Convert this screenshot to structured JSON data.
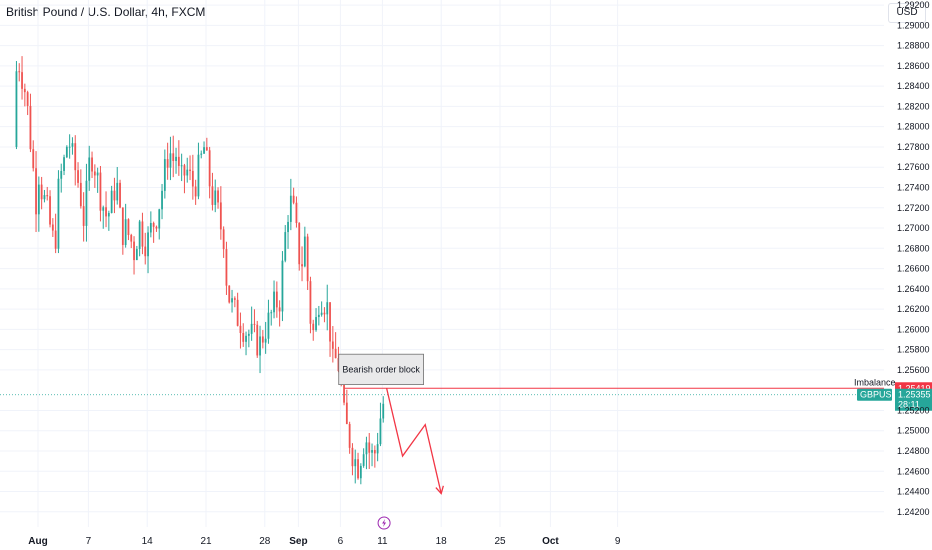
{
  "header": {
    "title": "British Pound / U.S. Dollar, 4h, FXCM",
    "currency": "USD"
  },
  "colors": {
    "up": "#26a69a",
    "down": "#ef5350",
    "arrow": "#f23645",
    "grid": "#f0f3fa",
    "price_line": "#26a69a",
    "imbalance_line": "#f23645",
    "block_fill": "#e9e9ea",
    "block_border": "#707070",
    "event_icon": "#9c27b0"
  },
  "chart_data": {
    "type": "candlestick",
    "symbol": "GBPUSD",
    "timeframe": "4h",
    "ylim": [
      1.2405,
      1.2925
    ],
    "y_ticks": [
      "1.29200",
      "1.29000",
      "1.28800",
      "1.28600",
      "1.28400",
      "1.28200",
      "1.28000",
      "1.27800",
      "1.27600",
      "1.27400",
      "1.27200",
      "1.27000",
      "1.26800",
      "1.26600",
      "1.26400",
      "1.26200",
      "1.26000",
      "1.25800",
      "1.25600",
      "1.25200",
      "1.25000",
      "1.24800",
      "1.24600",
      "1.24400",
      "1.24200"
    ],
    "x_ticks": [
      {
        "label": "Aug",
        "day": 0,
        "bold": true
      },
      {
        "label": "7",
        "day": 6
      },
      {
        "label": "14",
        "day": 13
      },
      {
        "label": "21",
        "day": 20
      },
      {
        "label": "28",
        "day": 27
      },
      {
        "label": "Sep",
        "day": 31,
        "bold": true
      },
      {
        "label": "6",
        "day": 36
      },
      {
        "label": "11",
        "day": 41
      },
      {
        "label": "18",
        "day": 48
      },
      {
        "label": "25",
        "day": 55
      },
      {
        "label": "Oct",
        "day": 61,
        "bold": true
      },
      {
        "label": "9",
        "day": 69
      }
    ],
    "price_path": [
      [
        -2.9,
        1.278
      ],
      [
        -2.5,
        1.287
      ],
      [
        -2.0,
        1.2855
      ],
      [
        -1.4,
        1.283
      ],
      [
        -1.0,
        1.2795
      ],
      [
        -0.6,
        1.276
      ],
      [
        -0.2,
        1.2725
      ],
      [
        0.1,
        1.2755
      ],
      [
        0.5,
        1.2735
      ],
      [
        1.0,
        1.272
      ],
      [
        1.6,
        1.2695
      ],
      [
        2.0,
        1.268
      ],
      [
        2.5,
        1.2745
      ],
      [
        3.0,
        1.276
      ],
      [
        3.6,
        1.279
      ],
      [
        4.2,
        1.2765
      ],
      [
        4.8,
        1.2745
      ],
      [
        5.2,
        1.2725
      ],
      [
        5.5,
        1.2705
      ],
      [
        6.0,
        1.2755
      ],
      [
        6.3,
        1.2775
      ],
      [
        6.8,
        1.276
      ],
      [
        7.5,
        1.273
      ],
      [
        8.2,
        1.271
      ],
      [
        9.0,
        1.273
      ],
      [
        9.3,
        1.2755
      ],
      [
        9.6,
        1.272
      ],
      [
        10.0,
        1.2695
      ],
      [
        10.3,
        1.27
      ],
      [
        11.0,
        1.269
      ],
      [
        11.5,
        1.2675
      ],
      [
        12.0,
        1.2705
      ],
      [
        12.6,
        1.269
      ],
      [
        13.0,
        1.2685
      ],
      [
        13.5,
        1.27
      ],
      [
        14.2,
        1.2715
      ],
      [
        14.8,
        1.274
      ],
      [
        15.2,
        1.276
      ],
      [
        15.6,
        1.278
      ],
      [
        16.0,
        1.2765
      ],
      [
        16.4,
        1.2775
      ],
      [
        16.8,
        1.275
      ],
      [
        17.2,
        1.2745
      ],
      [
        17.6,
        1.276
      ],
      [
        18.0,
        1.275
      ],
      [
        18.6,
        1.274
      ],
      [
        19.2,
        1.276
      ],
      [
        19.8,
        1.278
      ],
      [
        20.3,
        1.275
      ],
      [
        20.8,
        1.273
      ],
      [
        21.3,
        1.272
      ],
      [
        21.8,
        1.27
      ],
      [
        22.2,
        1.269
      ],
      [
        22.5,
        1.264
      ],
      [
        23.0,
        1.2625
      ],
      [
        23.5,
        1.2615
      ],
      [
        24.0,
        1.261
      ],
      [
        24.6,
        1.26
      ],
      [
        25.2,
        1.2595
      ],
      [
        25.8,
        1.259
      ],
      [
        26.4,
        1.2585
      ],
      [
        27.0,
        1.26
      ],
      [
        27.6,
        1.261
      ],
      [
        28.2,
        1.2625
      ],
      [
        28.8,
        1.263
      ],
      [
        29.4,
        1.269
      ],
      [
        29.8,
        1.272
      ],
      [
        30.2,
        1.2725
      ],
      [
        30.6,
        1.2705
      ],
      [
        31.0,
        1.2675
      ],
      [
        31.4,
        1.2665
      ],
      [
        31.8,
        1.269
      ],
      [
        32.2,
        1.2635
      ],
      [
        32.6,
        1.2595
      ],
      [
        33.0,
        1.26
      ],
      [
        33.5,
        1.2635
      ],
      [
        34.0,
        1.263
      ],
      [
        34.5,
        1.262
      ],
      [
        35.0,
        1.258
      ],
      [
        35.2,
        1.255
      ],
      [
        35.5,
        1.2575
      ],
      [
        35.9,
        1.256
      ],
      [
        36.1,
        1.2545
      ],
      [
        36.3,
        1.252
      ],
      [
        36.6,
        1.2505
      ],
      [
        37.0,
        1.2495
      ],
      [
        37.4,
        1.248
      ],
      [
        37.8,
        1.247
      ],
      [
        38.2,
        1.2465
      ],
      [
        38.6,
        1.2485
      ],
      [
        39.0,
        1.2495
      ],
      [
        39.4,
        1.248
      ],
      [
        39.8,
        1.2475
      ],
      [
        40.2,
        1.248
      ],
      [
        40.6,
        1.2505
      ],
      [
        40.9,
        1.252
      ],
      [
        41.2,
        1.253
      ],
      [
        41.4,
        1.25355
      ]
    ],
    "current_price": "1.25355",
    "countdown": "28:11",
    "imbalance_price": 1.25419,
    "imbalance_label": "Imbalance",
    "imbalance_value": "1.25419",
    "price_tag_symbol": "GBPUSD",
    "order_block": {
      "label": "Bearish order block",
      "day_start": 35.8,
      "day_end": 45.9,
      "price_high": 1.25755,
      "price_low": 1.25455
    },
    "projection": [
      [
        41.5,
        1.2542
      ],
      [
        43.4,
        1.2475
      ],
      [
        46.1,
        1.2506
      ],
      [
        48.0,
        1.2438
      ]
    ]
  }
}
